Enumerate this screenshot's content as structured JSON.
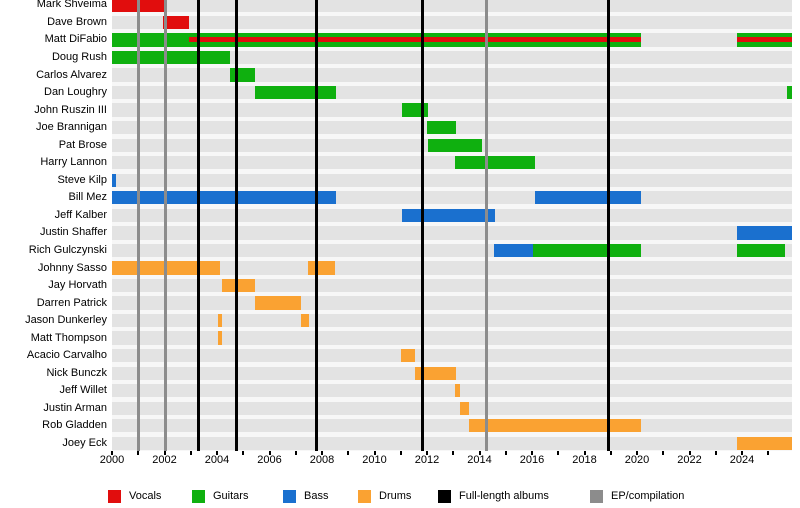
{
  "chart_data": {
    "type": "timeline",
    "x_axis": {
      "start": 2000,
      "end": 2025.9,
      "labeled_ticks": [
        2000,
        2002,
        2004,
        2006,
        2008,
        2010,
        2012,
        2014,
        2016,
        2018,
        2020,
        2022,
        2024
      ],
      "minor_tick_interval": 1
    },
    "colors": {
      "vocals": "#e10d0d",
      "guitars": "#0fb00f",
      "bass": "#1a70cf",
      "drums": "#faa232",
      "album_line": "#000000",
      "ep_line": "#8c8c8c",
      "row_band": "#e3e3e3"
    },
    "legend": [
      {
        "label": "Vocals",
        "color": "vocals"
      },
      {
        "label": "Guitars",
        "color": "guitars"
      },
      {
        "label": "Bass",
        "color": "bass"
      },
      {
        "label": "Drums",
        "color": "drums"
      },
      {
        "label": "Full-length albums",
        "color": "album_line"
      },
      {
        "label": "EP/compilation",
        "color": "ep_line"
      }
    ],
    "album_release_lines": [
      2003.3,
      2004.75,
      2007.8,
      2011.82,
      2018.9
    ],
    "ep_compilation_lines": [
      2001.0,
      2002.05,
      2014.25
    ],
    "members": [
      {
        "name": "Mark Shveima",
        "segments": [
          {
            "role": "vocals",
            "start": 2000.0,
            "end": 2002.0
          }
        ]
      },
      {
        "name": "Dave Brown",
        "segments": [
          {
            "role": "vocals",
            "start": 2001.95,
            "end": 2002.95
          }
        ]
      },
      {
        "name": "Matt DiFabio",
        "segments": [
          {
            "role": "guitars",
            "start": 2000.0,
            "end": 2002.95
          },
          {
            "role": "guitars+vocals",
            "start": 2002.95,
            "end": 2020.15
          },
          {
            "role": "guitars+vocals",
            "start": 2023.8,
            "end": 2025.9
          }
        ]
      },
      {
        "name": "Doug Rush",
        "segments": [
          {
            "role": "guitars",
            "start": 2000.0,
            "end": 2004.5
          }
        ]
      },
      {
        "name": "Carlos Alvarez",
        "segments": [
          {
            "role": "guitars",
            "start": 2004.5,
            "end": 2005.45
          }
        ]
      },
      {
        "name": "Dan Loughry",
        "segments": [
          {
            "role": "guitars",
            "start": 2005.45,
            "end": 2008.55
          },
          {
            "role": "guitars",
            "start": 2025.7,
            "end": 2025.9
          }
        ]
      },
      {
        "name": "John Ruszin III",
        "segments": [
          {
            "role": "guitars",
            "start": 2011.05,
            "end": 2012.05
          }
        ]
      },
      {
        "name": "Joe Brannigan",
        "segments": [
          {
            "role": "guitars",
            "start": 2012.0,
            "end": 2013.1
          }
        ]
      },
      {
        "name": "Pat Brose",
        "segments": [
          {
            "role": "guitars",
            "start": 2012.05,
            "end": 2014.1
          }
        ]
      },
      {
        "name": "Harry Lannon",
        "segments": [
          {
            "role": "guitars",
            "start": 2013.05,
            "end": 2016.1
          }
        ]
      },
      {
        "name": "Steve Kilp",
        "segments": [
          {
            "role": "bass",
            "start": 2000.0,
            "end": 2000.15
          }
        ]
      },
      {
        "name": "Bill Mez",
        "segments": [
          {
            "role": "bass",
            "start": 2000.0,
            "end": 2008.55
          },
          {
            "role": "bass",
            "start": 2016.1,
            "end": 2020.15
          }
        ]
      },
      {
        "name": "Jeff Kalber",
        "segments": [
          {
            "role": "bass",
            "start": 2011.05,
            "end": 2014.6
          }
        ]
      },
      {
        "name": "Justin Shaffer",
        "segments": [
          {
            "role": "bass",
            "start": 2023.8,
            "end": 2025.9
          }
        ]
      },
      {
        "name": "Rich Gulczynski",
        "segments": [
          {
            "role": "bass",
            "start": 2014.55,
            "end": 2016.05
          },
          {
            "role": "guitars",
            "start": 2016.05,
            "end": 2020.15
          },
          {
            "role": "guitars",
            "start": 2023.8,
            "end": 2025.65
          }
        ]
      },
      {
        "name": "Johnny Sasso",
        "segments": [
          {
            "role": "drums",
            "start": 2000.0,
            "end": 2004.1
          },
          {
            "role": "drums",
            "start": 2007.45,
            "end": 2008.5
          }
        ]
      },
      {
        "name": "Jay Horvath",
        "segments": [
          {
            "role": "drums",
            "start": 2004.2,
            "end": 2005.45
          }
        ]
      },
      {
        "name": "Darren Patrick",
        "segments": [
          {
            "role": "drums",
            "start": 2005.45,
            "end": 2007.2
          }
        ]
      },
      {
        "name": "Jason Dunkerley",
        "segments": [
          {
            "role": "drums",
            "start": 2004.05,
            "end": 2004.2
          },
          {
            "role": "drums",
            "start": 2007.2,
            "end": 2007.5
          }
        ]
      },
      {
        "name": "Matt Thompson",
        "segments": [
          {
            "role": "drums",
            "start": 2004.05,
            "end": 2004.2
          }
        ]
      },
      {
        "name": "Acacio Carvalho",
        "segments": [
          {
            "role": "drums",
            "start": 2011.0,
            "end": 2011.55
          }
        ]
      },
      {
        "name": "Nick Bunczk",
        "segments": [
          {
            "role": "drums",
            "start": 2011.55,
            "end": 2013.1
          }
        ]
      },
      {
        "name": "Jeff Willet",
        "segments": [
          {
            "role": "drums",
            "start": 2013.05,
            "end": 2013.25
          }
        ]
      },
      {
        "name": "Justin Arman",
        "segments": [
          {
            "role": "drums",
            "start": 2013.25,
            "end": 2013.6
          }
        ]
      },
      {
        "name": "Rob Gladden",
        "segments": [
          {
            "role": "drums",
            "start": 2013.6,
            "end": 2020.15
          }
        ]
      },
      {
        "name": "Joey Eck",
        "segments": [
          {
            "role": "drums",
            "start": 2023.8,
            "end": 2025.9
          }
        ]
      }
    ]
  }
}
